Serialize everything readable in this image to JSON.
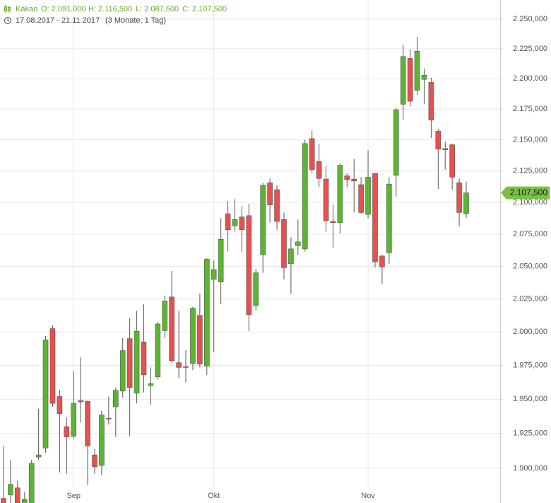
{
  "chart_data": {
    "type": "candlestick",
    "header": {
      "name": "Kakao",
      "open": "O: 2.091,000",
      "high": "H: 2.116,500",
      "low": "L: 2.087,500",
      "close": "C: 2.107,500",
      "range": "17.08.2017 - 21.11.2017",
      "period": "(3 Monate, 1 Tag)"
    },
    "categories": [
      null,
      null,
      null,
      null,
      null,
      null,
      null,
      null,
      null,
      null,
      "Sep",
      null,
      null,
      null,
      null,
      null,
      null,
      null,
      null,
      null,
      null,
      null,
      null,
      null,
      null,
      null,
      null,
      null,
      null,
      null,
      "Okt",
      null,
      null,
      null,
      null,
      null,
      null,
      null,
      null,
      null,
      null,
      null,
      null,
      null,
      null,
      null,
      null,
      null,
      null,
      null,
      null,
      null,
      "Nov",
      null,
      null,
      null,
      null,
      null,
      null,
      null,
      null,
      null,
      null,
      null,
      null,
      null,
      null
    ],
    "open": [
      1878500,
      1881000,
      1886000,
      1872000,
      1870000,
      1908000,
      1914500,
      2002500,
      1952000,
      1930000,
      1923000,
      1949000,
      1948500,
      1909500,
      1902000,
      1936000,
      1944500,
      1956000,
      1995000,
      1954500,
      1992500,
      1960000,
      1966500,
      2001000,
      2026500,
      1977000,
      1974000,
      1976500,
      2012500,
      1974500,
      2040000,
      2038000,
      2091000,
      2081500,
      2088500,
      2089500,
      2020000,
      2059000,
      2115500,
      2110000,
      2086500,
      2052000,
      2066000,
      2063500,
      2151000,
      2132500,
      2118500,
      2085000,
      2084000,
      2121000,
      2118500,
      2114000,
      2090500,
      2123000,
      2058000,
      2060500,
      2121500,
      2179000,
      2217000,
      2190500,
      2199500,
      2197000,
      2157000,
      2142000,
      2146000,
      2115500,
      2091000
    ],
    "high": [
      1916000,
      1906000,
      1891000,
      1883000,
      1906000,
      1943000,
      1997000,
      2005000,
      1957000,
      1936500,
      1970500,
      1981000,
      1949000,
      1914000,
      1941500,
      1952000,
      1958500,
      1995500,
      2010500,
      2016000,
      2021000,
      1973500,
      2007500,
      2027500,
      2046500,
      2016000,
      1986500,
      2019000,
      2029000,
      2056500,
      2054500,
      2087500,
      2101000,
      2102500,
      2097000,
      2099000,
      2048000,
      2115500,
      2119000,
      2113500,
      2092000,
      2072500,
      2086500,
      2150000,
      2157500,
      2147000,
      2129000,
      2098000,
      2131500,
      2123000,
      2134500,
      2120000,
      2141500,
      2123500,
      2059000,
      2120000,
      2176000,
      2228500,
      2224500,
      2235000,
      2208500,
      2201000,
      2159000,
      2148500,
      2147000,
      2119000,
      2116500
    ],
    "low": [
      1868000,
      1868000,
      1868000,
      1868000,
      1867000,
      1906000,
      1911000,
      1944500,
      1897000,
      1896000,
      1921000,
      1933000,
      1888000,
      1896000,
      1895000,
      1931500,
      1922500,
      1951000,
      1923000,
      1947000,
      1955000,
      1946000,
      1964500,
      1995500,
      1977000,
      1965500,
      1962500,
      1971500,
      1973500,
      1968000,
      1985000,
      2021000,
      2061500,
      2077000,
      2061500,
      2000500,
      2016000,
      2045000,
      2084000,
      2078500,
      2040000,
      2029000,
      2059000,
      2061500,
      2123500,
      2112000,
      2077000,
      2064500,
      2075500,
      2112000,
      2092000,
      2091000,
      2087500,
      2049000,
      2036500,
      2052000,
      2104500,
      2166000,
      2177500,
      2186500,
      2179000,
      2151500,
      2110500,
      2126000,
      2110000,
      2081000,
      2087500
    ],
    "close": [
      1871000,
      1888500,
      1871000,
      1878000,
      1903500,
      1909500,
      1994000,
      1947000,
      1939500,
      1922500,
      1947000,
      1948000,
      1916000,
      1901000,
      1938500,
      1935500,
      1956500,
      1986000,
      1958500,
      2000500,
      1968000,
      1961500,
      2006000,
      2023500,
      1978500,
      1973500,
      1973500,
      2018000,
      1976000,
      2055500,
      2047500,
      2071000,
      2078500,
      2086500,
      2078500,
      2013000,
      2045000,
      2113500,
      2098000,
      2085000,
      2049000,
      2063500,
      2069000,
      2147000,
      2126000,
      2119000,
      2085500,
      2084000,
      2129500,
      2118000,
      2117000,
      2092000,
      2120000,
      2053500,
      2049500,
      2114500,
      2174500,
      2218500,
      2181500,
      2223000,
      2203000,
      2166000,
      2142500,
      2143000,
      2120000,
      2092000,
      2107500
    ],
    "up_color": "#5cb531",
    "down_color": "#e8504f",
    "log_scale": true,
    "grid": true,
    "ylim": [
      1875300,
      2266200
    ],
    "yticks": [
      {
        "value": 1900000,
        "label": "1.900,000"
      },
      {
        "value": 1925000,
        "label": "1.925,000"
      },
      {
        "value": 1950000,
        "label": "1.950,000"
      },
      {
        "value": 1975000,
        "label": "1.975,000"
      },
      {
        "value": 2000000,
        "label": "2.000,000"
      },
      {
        "value": 2025000,
        "label": "2.025,000"
      },
      {
        "value": 2050000,
        "label": "2.050,000"
      },
      {
        "value": 2075000,
        "label": "2.075,000"
      },
      {
        "value": 2100000,
        "label": "2.100,000"
      },
      {
        "value": 2125000,
        "label": "2.125,000"
      },
      {
        "value": 2150000,
        "label": "2.150,000"
      },
      {
        "value": 2175000,
        "label": "2.175,000"
      },
      {
        "value": 2200000,
        "label": "2.200,000"
      },
      {
        "value": 2225000,
        "label": "2.225,000"
      },
      {
        "value": 2250000,
        "label": "2.250,000"
      }
    ],
    "last_price": {
      "value": 2107500,
      "label": "2.107,500"
    }
  }
}
